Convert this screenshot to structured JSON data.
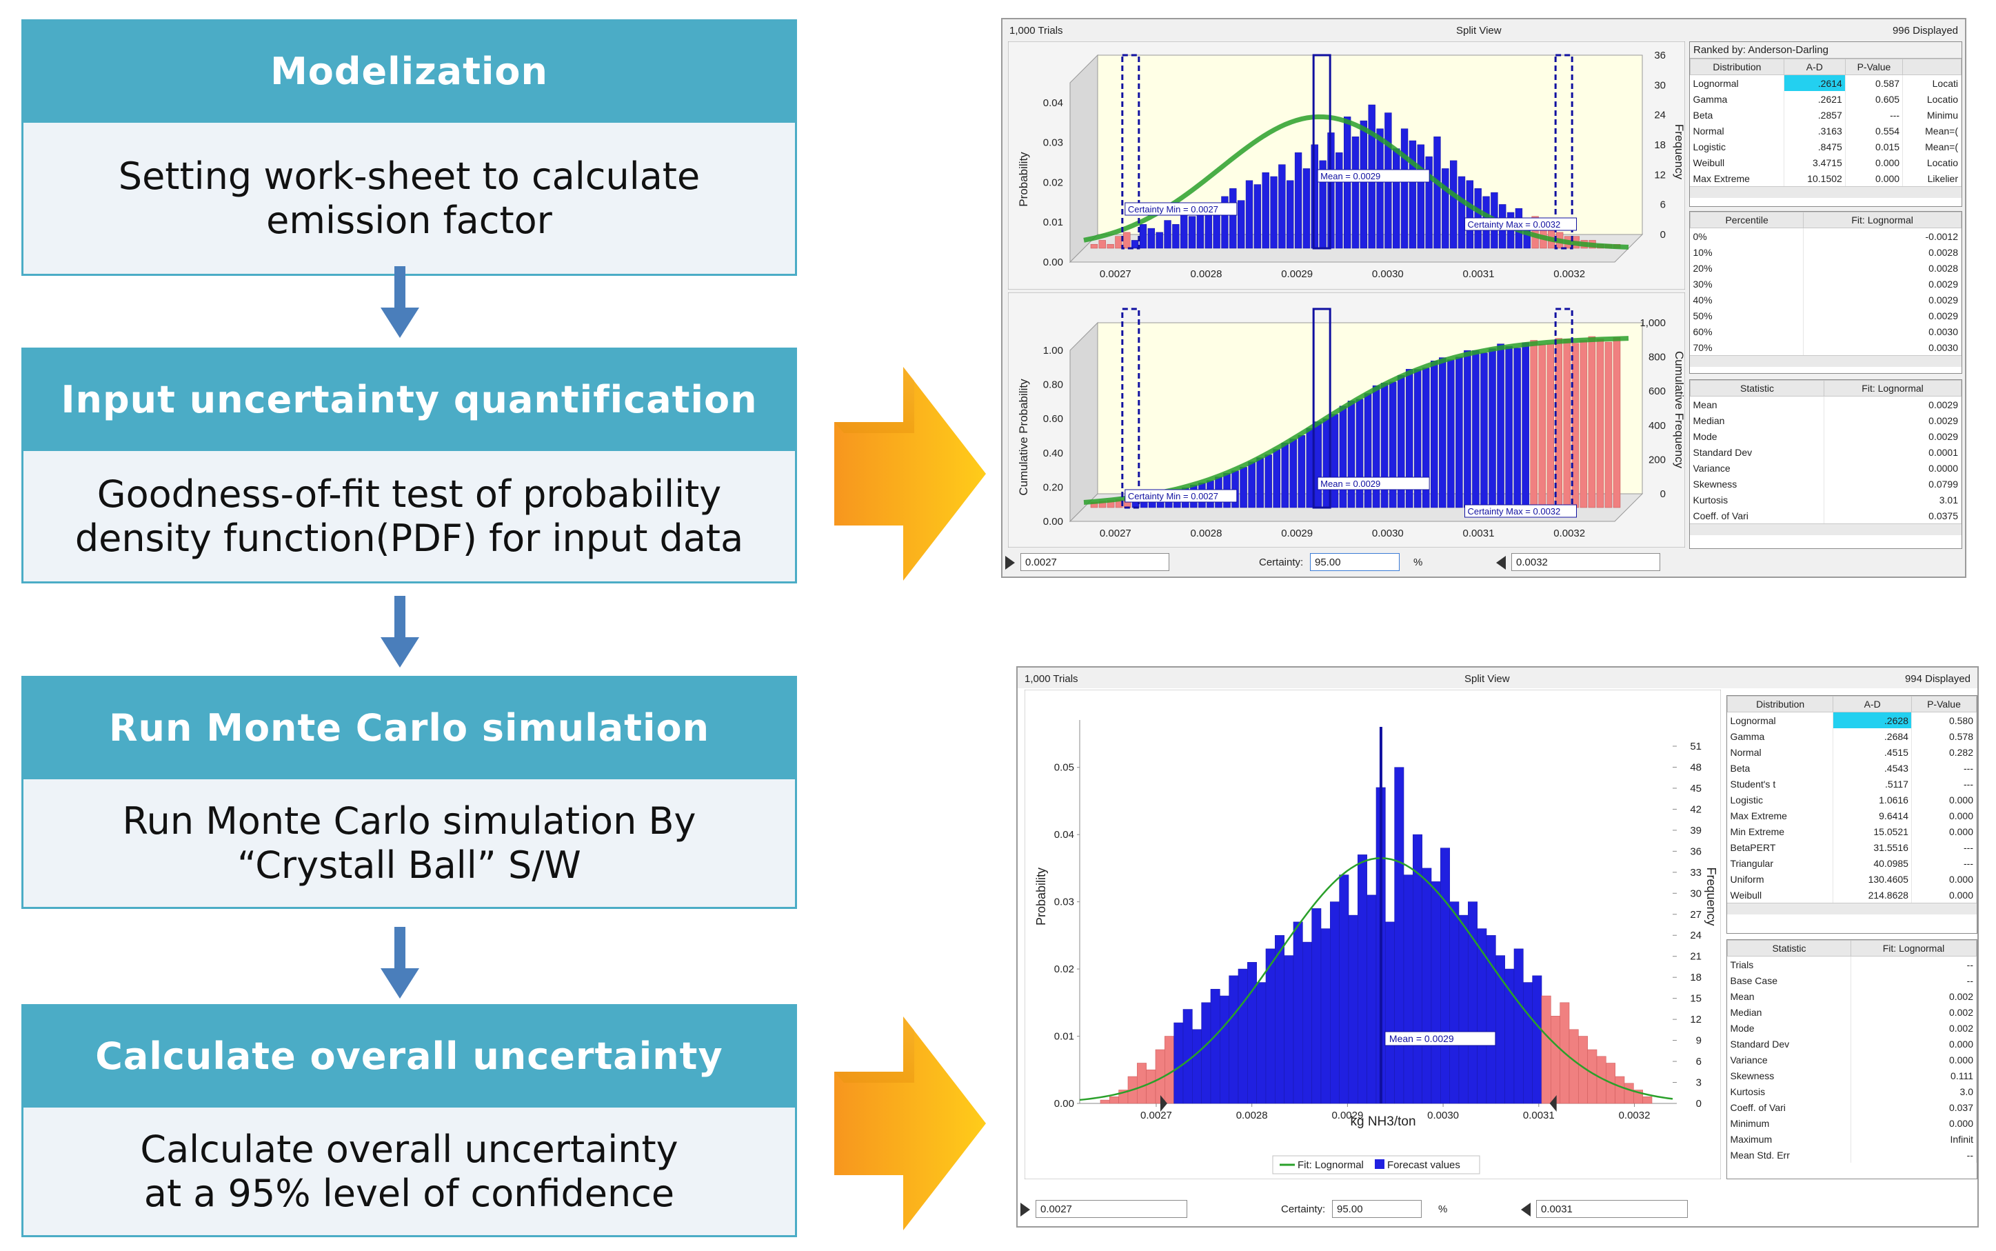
{
  "flow": {
    "steps": [
      {
        "title": "Modelization",
        "body": "Setting work-sheet to calculate\nemission factor"
      },
      {
        "title": "Input uncertainty quantification",
        "body": "Goodness-of-fit test of probability\ndensity function(PDF) for input data"
      },
      {
        "title": "Run Monte Carlo simulation",
        "body": "Run Monte Carlo simulation By\n“Crystall Ball” S/W"
      },
      {
        "title": "Calculate overall uncertainty",
        "body": "Calculate overall uncertainty\nat a 95% level of confidence"
      }
    ]
  },
  "colors": {
    "header": "#4bacc6",
    "body_bg": "#eef3f8",
    "arrow_blue": "#4a7ebb",
    "big_arrow": "#f5a623",
    "bars": "#2020e0",
    "tails": "#f08080",
    "fit": "#2aa02a"
  },
  "win1": {
    "trials": "1,000 Trials",
    "view": "Split View",
    "displayed": "996 Displayed",
    "ranked_by": "Ranked by: Anderson-Darling",
    "fit_headers": [
      "Distribution",
      "A-D",
      "P-Value",
      ""
    ],
    "fit_rows": [
      [
        "Lognormal",
        ".2614",
        "0.587",
        "Locati"
      ],
      [
        "Gamma",
        ".2621",
        "0.605",
        "Locatio"
      ],
      [
        "Beta",
        ".2857",
        "---",
        "Minimu"
      ],
      [
        "Normal",
        ".3163",
        "0.554",
        "Mean=("
      ],
      [
        "Logistic",
        ".8475",
        "0.015",
        "Mean=("
      ],
      [
        "Weibull",
        "3.4715",
        "0.000",
        "Locatio"
      ],
      [
        "Max Extreme",
        "10.1502",
        "0.000",
        "Likelier"
      ]
    ],
    "pct_headers": [
      "Percentile",
      "Fit: Lognormal"
    ],
    "pct_rows": [
      [
        "0%",
        "-0.0012"
      ],
      [
        "10%",
        "0.0028"
      ],
      [
        "20%",
        "0.0028"
      ],
      [
        "30%",
        "0.0029"
      ],
      [
        "40%",
        "0.0029"
      ],
      [
        "50%",
        "0.0029"
      ],
      [
        "60%",
        "0.0030"
      ],
      [
        "70%",
        "0.0030"
      ]
    ],
    "stat_headers": [
      "Statistic",
      "Fit: Lognormal"
    ],
    "stat_rows": [
      [
        "Mean",
        "0.0029"
      ],
      [
        "Median",
        "0.0029"
      ],
      [
        "Mode",
        "0.0029"
      ],
      [
        "Standard Dev",
        "0.0001"
      ],
      [
        "Variance",
        "0.0000"
      ],
      [
        "Skewness",
        "0.0799"
      ],
      [
        "Kurtosis",
        "3.01"
      ],
      [
        "Coeff. of Vari",
        "0.0375"
      ]
    ],
    "certainty_label": "Certainty:",
    "certainty_value": "95.00",
    "percent_sign": "%",
    "left_value": "0.0027",
    "right_value": "0.0032"
  },
  "win2": {
    "trials": "1,000 Trials",
    "view": "Split View",
    "displayed": "994 Displayed",
    "fit_headers": [
      "Distribution",
      "A-D",
      "P-Value"
    ],
    "fit_rows": [
      [
        "Lognormal",
        ".2628",
        "0.580"
      ],
      [
        "Gamma",
        ".2684",
        "0.578"
      ],
      [
        "Normal",
        ".4515",
        "0.282"
      ],
      [
        "Beta",
        ".4543",
        "---"
      ],
      [
        "Student's t",
        ".5117",
        "---"
      ],
      [
        "Logistic",
        "1.0616",
        "0.000"
      ],
      [
        "Max Extreme",
        "9.6414",
        "0.000"
      ],
      [
        "Min Extreme",
        "15.0521",
        "0.000"
      ],
      [
        "BetaPERT",
        "31.5516",
        "---"
      ],
      [
        "Triangular",
        "40.0985",
        "---"
      ],
      [
        "Uniform",
        "130.4605",
        "0.000"
      ],
      [
        "Weibull",
        "214.8628",
        "0.000"
      ]
    ],
    "stat_headers": [
      "Statistic",
      "Fit: Lognormal"
    ],
    "stat_rows": [
      [
        "Trials",
        "--"
      ],
      [
        "Base Case",
        "--"
      ],
      [
        "Mean",
        "0.002"
      ],
      [
        "Median",
        "0.002"
      ],
      [
        "Mode",
        "0.002"
      ],
      [
        "Standard Dev",
        "0.000"
      ],
      [
        "Variance",
        "0.000"
      ],
      [
        "Skewness",
        "0.111"
      ],
      [
        "Kurtosis",
        "3.0"
      ],
      [
        "Coeff. of Vari",
        "0.037"
      ],
      [
        "Minimum",
        "0.000"
      ],
      [
        "Maximum",
        "Infinit"
      ],
      [
        "Mean Std. Err",
        "--"
      ]
    ],
    "legend_fit": "Fit: Lognormal",
    "legend_forecast": "Forecast values",
    "certainty_label": "Certainty:",
    "certainty_value": "95.00",
    "percent_sign": "%",
    "left_value": "0.0027",
    "right_value": "0.0031"
  },
  "chart_data": [
    {
      "type": "bar",
      "title": "Split View (frequency, 3D)",
      "ylabel": "Probability",
      "y2label": "Frequency",
      "xticks": [
        "0.0027",
        "0.0028",
        "0.0029",
        "0.0030",
        "0.0031",
        "0.0032"
      ],
      "yticks": [
        "0.00",
        "0.01",
        "0.02",
        "0.03",
        "0.04"
      ],
      "y2ticks": [
        "0",
        "6",
        "12",
        "18",
        "24",
        "30",
        "36"
      ],
      "annotations": [
        "Certainty Min = 0.0027",
        "Mean = 0.0029",
        "Certainty Max = 0.0032"
      ],
      "x_range": [
        0.00265,
        0.00325
      ],
      "y_range": [
        0,
        0.045
      ],
      "values": [
        0.001,
        0.002,
        0.001,
        0.003,
        0.004,
        0.002,
        0.006,
        0.005,
        0.004,
        0.007,
        0.006,
        0.009,
        0.008,
        0.011,
        0.01,
        0.009,
        0.013,
        0.015,
        0.012,
        0.017,
        0.016,
        0.019,
        0.018,
        0.021,
        0.017,
        0.024,
        0.02,
        0.026,
        0.022,
        0.029,
        0.024,
        0.033,
        0.028,
        0.032,
        0.036,
        0.03,
        0.034,
        0.025,
        0.03,
        0.027,
        0.026,
        0.023,
        0.028,
        0.02,
        0.022,
        0.018,
        0.017,
        0.015,
        0.013,
        0.014,
        0.011,
        0.009,
        0.01,
        0.007,
        0.008,
        0.006,
        0.005,
        0.004,
        0.003,
        0.003,
        0.002,
        0.002,
        0.001,
        0.001,
        0.001
      ]
    },
    {
      "type": "area",
      "title": "Split View (cumulative, 3D)",
      "ylabel": "Cumulative Probability",
      "y2label": "Cumulative Frequency",
      "xticks": [
        "0.0027",
        "0.0028",
        "0.0029",
        "0.0030",
        "0.0031",
        "0.0032"
      ],
      "yticks": [
        "0.00",
        "0.20",
        "0.40",
        "0.60",
        "0.80",
        "1.00"
      ],
      "y2ticks": [
        "0",
        "200",
        "400",
        "600",
        "800",
        "1,000"
      ],
      "annotations": [
        "Certainty Min = 0.0027",
        "Mean = 0.0029",
        "Certainty Max = 0.0032"
      ],
      "x_range": [
        0.00265,
        0.00325
      ],
      "y_range": [
        0,
        1.0
      ]
    },
    {
      "type": "bar",
      "title": "Split View",
      "xlabel": "kg NH3/ton",
      "ylabel": "Probability",
      "y2label": "Frequency",
      "xticks": [
        "0.0027",
        "0.0028",
        "0.0029",
        "0.0030",
        "0.0031",
        "0.0032"
      ],
      "yticks": [
        "0.00",
        "0.01",
        "0.02",
        "0.03",
        "0.04",
        "0.05"
      ],
      "y2ticks": [
        "0",
        "3",
        "6",
        "9",
        "12",
        "15",
        "18",
        "21",
        "24",
        "27",
        "30",
        "33",
        "36",
        "39",
        "42",
        "45",
        "48",
        "51"
      ],
      "annotations": [
        "Mean = 0.0029"
      ],
      "x_range": [
        0.00262,
        0.00324
      ],
      "y_range": [
        0,
        0.055
      ],
      "values": [
        0.0005,
        0.001,
        0.002,
        0.004,
        0.006,
        0.005,
        0.008,
        0.01,
        0.012,
        0.014,
        0.011,
        0.015,
        0.017,
        0.016,
        0.019,
        0.02,
        0.021,
        0.018,
        0.023,
        0.025,
        0.022,
        0.027,
        0.024,
        0.029,
        0.026,
        0.03,
        0.034,
        0.028,
        0.037,
        0.031,
        0.047,
        0.027,
        0.05,
        0.034,
        0.04,
        0.035,
        0.033,
        0.038,
        0.03,
        0.028,
        0.03,
        0.026,
        0.025,
        0.022,
        0.02,
        0.023,
        0.018,
        0.019,
        0.016,
        0.013,
        0.015,
        0.011,
        0.01,
        0.008,
        0.007,
        0.006,
        0.004,
        0.003,
        0.002,
        0.001
      ]
    }
  ]
}
